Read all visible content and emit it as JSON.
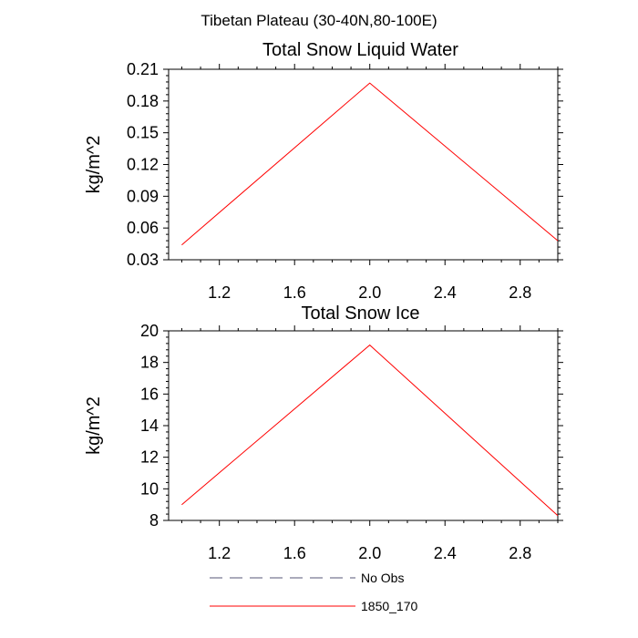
{
  "figure_title": "Tibetan Plateau (30-40N,80-100E)",
  "chart_data": [
    {
      "type": "line",
      "title": "Total Snow Liquid Water",
      "xlabel": "",
      "ylabel": "kg/m^2",
      "xlim": [
        0.93,
        3.0
      ],
      "ylim": [
        0.03,
        0.21
      ],
      "xticks": [
        "1.2",
        "1.6",
        "2.0",
        "2.4",
        "2.8"
      ],
      "yticks": [
        "0.03",
        "0.06",
        "0.09",
        "0.12",
        "0.15",
        "0.18",
        "0.21"
      ],
      "grid": false,
      "series": [
        {
          "name": "1850_170",
          "color": "#ff0000",
          "x": [
            1.0,
            2.0,
            3.0
          ],
          "y": [
            0.044,
            0.197,
            0.048
          ]
        }
      ]
    },
    {
      "type": "line",
      "title": "Total Snow Ice",
      "xlabel": "",
      "ylabel": "kg/m^2",
      "xlim": [
        0.93,
        3.0
      ],
      "ylim": [
        8,
        20
      ],
      "xticks": [
        "1.2",
        "1.6",
        "2.0",
        "2.4",
        "2.8"
      ],
      "yticks": [
        "8",
        "10",
        "12",
        "14",
        "16",
        "18",
        "20"
      ],
      "grid": false,
      "series": [
        {
          "name": "1850_170",
          "color": "#ff0000",
          "x": [
            1.0,
            2.0,
            3.0
          ],
          "y": [
            9.0,
            19.1,
            8.3
          ]
        }
      ]
    }
  ],
  "legend": {
    "placement": "bottom",
    "entries": [
      {
        "label": "No Obs",
        "color": "#555577",
        "style": "dashed"
      },
      {
        "label": "1850_170",
        "color": "#ff0000",
        "style": "solid"
      }
    ]
  }
}
